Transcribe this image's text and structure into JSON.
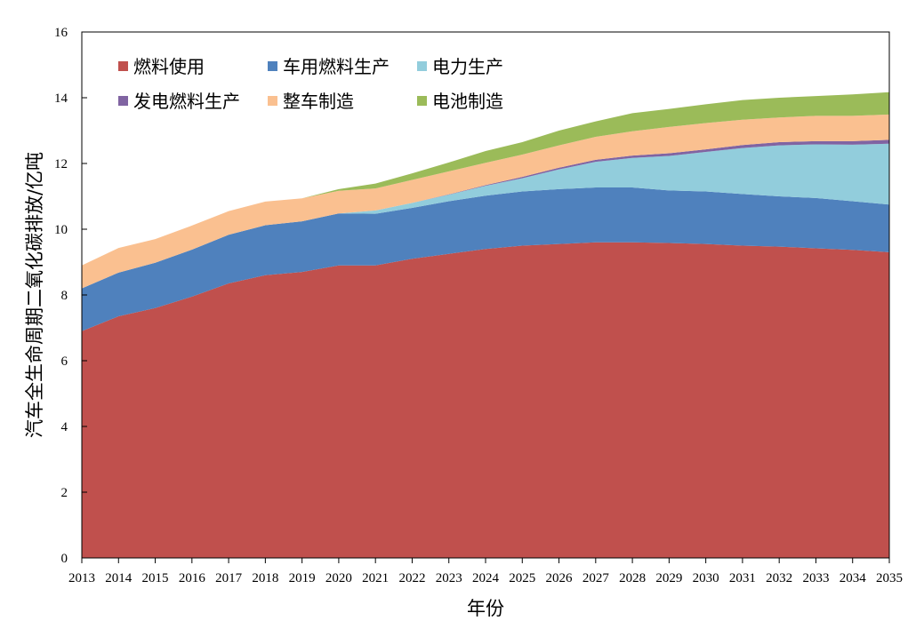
{
  "chart_data": {
    "type": "area",
    "stacked": true,
    "title": "",
    "xlabel": "年份",
    "ylabel": "汽车全生命周期二氧化碳排放/亿吨",
    "ylim": [
      0,
      16
    ],
    "yticks": [
      "0",
      "2",
      "4",
      "6",
      "8",
      "10",
      "12",
      "14",
      "16"
    ],
    "grid": false,
    "legend_position": "top-left",
    "x": [
      "2013",
      "2014",
      "2015",
      "2016",
      "2017",
      "2018",
      "2019",
      "2020",
      "2021",
      "2022",
      "2023",
      "2024",
      "2025",
      "2026",
      "2027",
      "2028",
      "2029",
      "2030",
      "2031",
      "2032",
      "2033",
      "2034",
      "2035"
    ],
    "series": [
      {
        "name": "燃料使用",
        "color": "#c0504d",
        "values": [
          6.9,
          7.35,
          7.6,
          7.95,
          8.35,
          8.6,
          8.7,
          8.9,
          8.9,
          9.1,
          9.25,
          9.4,
          9.5,
          9.55,
          9.6,
          9.6,
          9.58,
          9.55,
          9.5,
          9.47,
          9.42,
          9.37,
          9.3
        ]
      },
      {
        "name": "车用燃料生产",
        "color": "#4f81bd",
        "values": [
          1.3,
          1.33,
          1.38,
          1.43,
          1.48,
          1.52,
          1.54,
          1.58,
          1.57,
          1.55,
          1.6,
          1.62,
          1.65,
          1.67,
          1.67,
          1.67,
          1.6,
          1.6,
          1.57,
          1.53,
          1.53,
          1.48,
          1.45
        ]
      },
      {
        "name": "电力生产",
        "color": "#92cddc",
        "values": [
          0,
          0,
          0,
          0,
          0,
          0,
          0,
          0,
          0.1,
          0.15,
          0.2,
          0.3,
          0.4,
          0.6,
          0.78,
          0.9,
          1.05,
          1.2,
          1.4,
          1.55,
          1.63,
          1.72,
          1.85
        ]
      },
      {
        "name": "发电燃料生产",
        "color": "#8064a2",
        "values": [
          0,
          0,
          0,
          0,
          0,
          0,
          0,
          0,
          0,
          0,
          0.01,
          0.02,
          0.04,
          0.05,
          0.06,
          0.07,
          0.08,
          0.08,
          0.09,
          0.1,
          0.1,
          0.11,
          0.12
        ]
      },
      {
        "name": "整车制造",
        "color": "#fac090",
        "values": [
          0.7,
          0.75,
          0.72,
          0.73,
          0.72,
          0.72,
          0.7,
          0.69,
          0.67,
          0.7,
          0.7,
          0.68,
          0.68,
          0.68,
          0.7,
          0.74,
          0.8,
          0.8,
          0.77,
          0.75,
          0.77,
          0.77,
          0.77
        ]
      },
      {
        "name": "电池制造",
        "color": "#9bbb59",
        "values": [
          0,
          0,
          0,
          0,
          0,
          0,
          0,
          0.05,
          0.15,
          0.2,
          0.27,
          0.36,
          0.38,
          0.45,
          0.47,
          0.55,
          0.55,
          0.57,
          0.6,
          0.6,
          0.6,
          0.65,
          0.68
        ]
      }
    ]
  }
}
